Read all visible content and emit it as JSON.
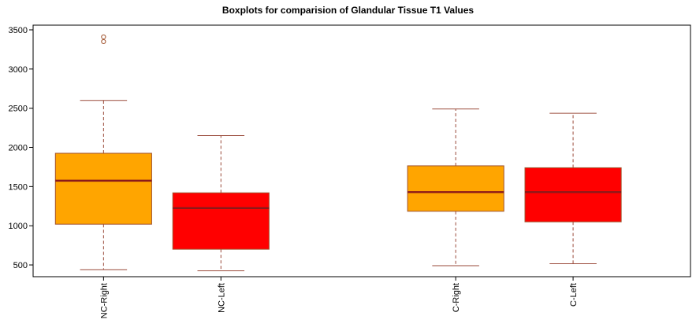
{
  "chart_data": {
    "type": "boxplot",
    "title": "Boxplots for comparision of Glandular Tissue T1 Values",
    "xlabel": "",
    "ylabel": "",
    "ylim": [
      350,
      3560
    ],
    "yticks": [
      500,
      1000,
      1500,
      2000,
      2500,
      3000,
      3500
    ],
    "grid": false,
    "boxes": [
      {
        "label": "NC-Right",
        "slot": 1,
        "color": "#FFA500",
        "min": 440,
        "q1": 1020,
        "median": 1575,
        "q3": 1925,
        "max": 2600,
        "outliers": [
          3350,
          3410
        ]
      },
      {
        "label": "NC-Left",
        "slot": 2,
        "color": "#FF0000",
        "min": 425,
        "q1": 700,
        "median": 1225,
        "q3": 1420,
        "max": 2150,
        "outliers": []
      },
      {
        "label": "C-Right",
        "slot": 4,
        "color": "#FFA500",
        "min": 490,
        "q1": 1185,
        "median": 1430,
        "q3": 1765,
        "max": 2490,
        "outliers": []
      },
      {
        "label": "C-Left",
        "slot": 5,
        "color": "#FF0000",
        "min": 515,
        "q1": 1050,
        "median": 1430,
        "q3": 1740,
        "max": 2435,
        "outliers": []
      }
    ]
  }
}
